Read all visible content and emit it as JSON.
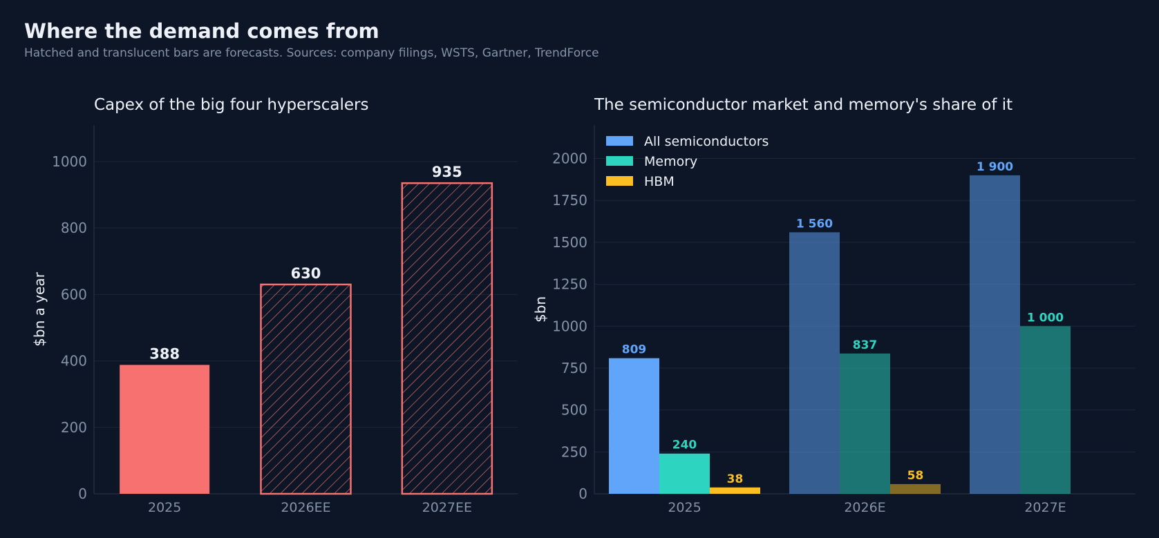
{
  "figure": {
    "title": "Where the demand comes from",
    "subtitle": "Hatched and translucent bars are forecasts. Sources: company filings, WSTS, Gartner, TrendForce"
  },
  "colors": {
    "background": "#0d1626",
    "grid": "#1b2638",
    "tick_text": "#8493a8",
    "text": "#eef2f8",
    "capex": "#f87171",
    "all_semis": "#60a5fa",
    "memory": "#2dd4bf",
    "hbm": "#fbbf24"
  },
  "chart_data": [
    {
      "type": "bar",
      "title": "Capex of the big four hyperscalers",
      "xlabel": "",
      "ylabel": "$bn a year",
      "categories": [
        "2025",
        "2026EE",
        "2027EE"
      ],
      "values": [
        388,
        630,
        935
      ],
      "value_labels": [
        "388",
        "630",
        "935"
      ],
      "forecast": [
        false,
        true,
        true
      ],
      "forecast_style": "hatched",
      "ylim": [
        0,
        1110
      ],
      "yticks": [
        0,
        200,
        400,
        600,
        800,
        1000
      ],
      "grid": true,
      "legend": "none"
    },
    {
      "type": "bar",
      "title": "The semiconductor market and memory's share of it",
      "xlabel": "",
      "ylabel": "$bn",
      "categories": [
        "2025",
        "2026E",
        "2027E"
      ],
      "forecast": [
        false,
        true,
        true
      ],
      "forecast_style": "translucent",
      "series": [
        {
          "name": "All semiconductors",
          "values": [
            809,
            1560,
            1900
          ],
          "labels": [
            "809",
            "1 560",
            "1 900"
          ],
          "color": "#60a5fa"
        },
        {
          "name": "Memory",
          "values": [
            240,
            837,
            1000
          ],
          "labels": [
            "240",
            "837",
            "1 000"
          ],
          "color": "#2dd4bf"
        },
        {
          "name": "HBM",
          "values": [
            38,
            58,
            null
          ],
          "labels": [
            "38",
            "58",
            ""
          ],
          "color": "#fbbf24"
        }
      ],
      "ylim": [
        0,
        2200
      ],
      "yticks": [
        0,
        250,
        500,
        750,
        1000,
        1250,
        1500,
        1750,
        2000
      ],
      "grid": true,
      "legend": "top-left"
    }
  ]
}
